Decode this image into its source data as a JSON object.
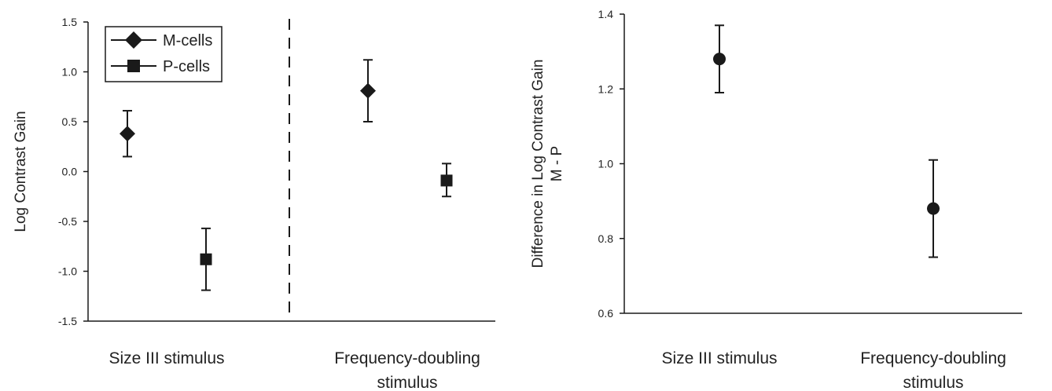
{
  "chart_data": [
    {
      "type": "scatter",
      "ylabel": "Log  Contrast Gain",
      "ylim": [
        -1.5,
        1.5
      ],
      "yticks": [
        "1.5",
        "1.0",
        "0.5",
        "0.0",
        "-0.5",
        "-1.0",
        "-1.5"
      ],
      "categories": [
        "Size III stimulus",
        "Frequency-doubling stimulus"
      ],
      "category_lines": [
        [
          "Size III stimulus"
        ],
        [
          "Frequency-doubling",
          "stimulus"
        ]
      ],
      "legend": {
        "position": "top-left",
        "entries": [
          "M-cells",
          "P-cells"
        ]
      },
      "divider": "dashed vertical line between categories",
      "series": [
        {
          "name": "M-cells",
          "marker": "diamond",
          "points": [
            {
              "category": "Size III stimulus",
              "y": 0.38,
              "err_low": 0.15,
              "err_high": 0.61
            },
            {
              "category": "Frequency-doubling stimulus",
              "y": 0.81,
              "err_low": 0.5,
              "err_high": 1.12
            }
          ]
        },
        {
          "name": "P-cells",
          "marker": "square",
          "points": [
            {
              "category": "Size III stimulus",
              "y": -0.88,
              "err_low": -1.19,
              "err_high": -0.57
            },
            {
              "category": "Frequency-doubling stimulus",
              "y": -0.09,
              "err_low": -0.25,
              "err_high": 0.08
            }
          ]
        }
      ]
    },
    {
      "type": "scatter",
      "ylabel_lines": [
        "Difference in Log Contrast Gain",
        "M - P"
      ],
      "ylim": [
        0.6,
        1.4
      ],
      "yticks": [
        "1.4",
        "1.2",
        "1.0",
        "0.8",
        "0.6"
      ],
      "categories": [
        "Size III stimulus",
        "Frequency-doubling stimulus"
      ],
      "category_lines": [
        [
          "Size III stimulus"
        ],
        [
          "Frequency-doubling",
          "stimulus"
        ]
      ],
      "series": [
        {
          "marker": "circle",
          "points": [
            {
              "category": "Size III stimulus",
              "y": 1.28,
              "err_low": 1.19,
              "err_high": 1.37
            },
            {
              "category": "Frequency-doubling stimulus",
              "y": 0.88,
              "err_low": 0.75,
              "err_high": 1.01
            }
          ]
        }
      ]
    }
  ]
}
